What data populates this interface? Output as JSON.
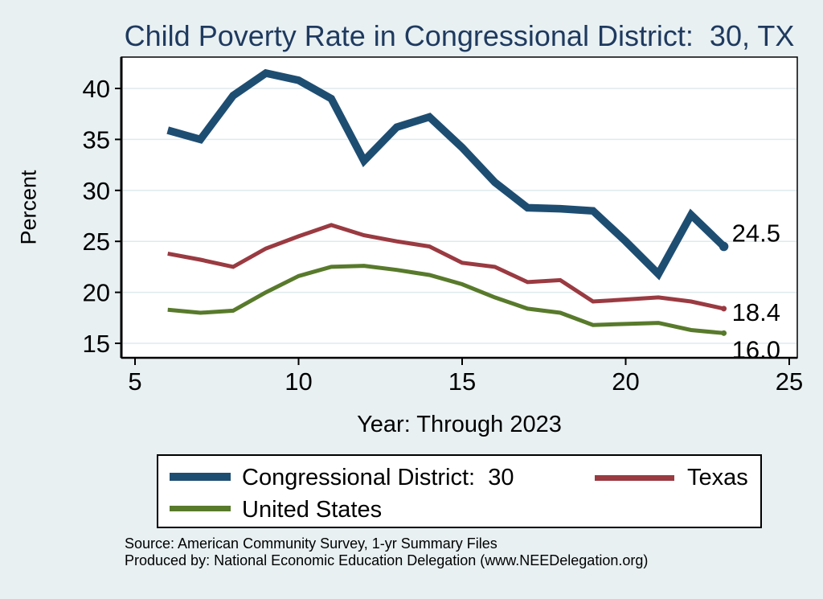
{
  "chart_data": {
    "type": "line",
    "title": "Child Poverty Rate in Congressional District:  30, TX",
    "xlabel": "Year: Through 2023",
    "ylabel": "Percent",
    "x_ticks": [
      5,
      10,
      15,
      20,
      25
    ],
    "y_ticks": [
      15,
      20,
      25,
      30,
      35,
      40
    ],
    "xlim": [
      5,
      25
    ],
    "ylim": [
      15,
      40
    ],
    "grid": true,
    "legend_position": "bottom",
    "x": [
      6,
      7,
      8,
      9,
      10,
      11,
      12,
      13,
      14,
      15,
      16,
      17,
      18,
      19,
      20,
      21,
      22,
      23
    ],
    "series": [
      {
        "name": "Congressional District:  30",
        "color": "#1e4d72",
        "end_label": "24.5",
        "values": [
          35.9,
          35.0,
          39.3,
          41.5,
          40.8,
          39.0,
          32.9,
          36.2,
          37.2,
          34.2,
          30.8,
          28.3,
          28.2,
          28.0,
          25.0,
          21.8,
          27.6,
          24.5
        ]
      },
      {
        "name": "Texas",
        "color": "#9a3a41",
        "end_label": "18.4",
        "values": [
          23.8,
          23.2,
          22.5,
          24.3,
          25.5,
          26.6,
          25.6,
          25.0,
          24.5,
          22.9,
          22.5,
          21.0,
          21.2,
          19.1,
          19.3,
          19.5,
          19.1,
          18.4
        ]
      },
      {
        "name": "United States",
        "color": "#587a2b",
        "end_label": "16.0",
        "values": [
          18.3,
          18.0,
          18.2,
          20.0,
          21.6,
          22.5,
          22.6,
          22.2,
          21.7,
          20.8,
          19.5,
          18.4,
          18.0,
          16.8,
          16.9,
          17.0,
          16.3,
          16.0
        ]
      }
    ]
  },
  "colors": {
    "background": "#e8f0f2",
    "plot_background": "#ffffff",
    "gridline": "#dfeaed",
    "title": "#1f3a5f",
    "axis": "#000000"
  },
  "footer": {
    "line1": "Source: American Community Survey, 1-yr Summary Files",
    "line2": "Produced by: National Economic Education Delegation (www.NEEDelegation.org)"
  }
}
